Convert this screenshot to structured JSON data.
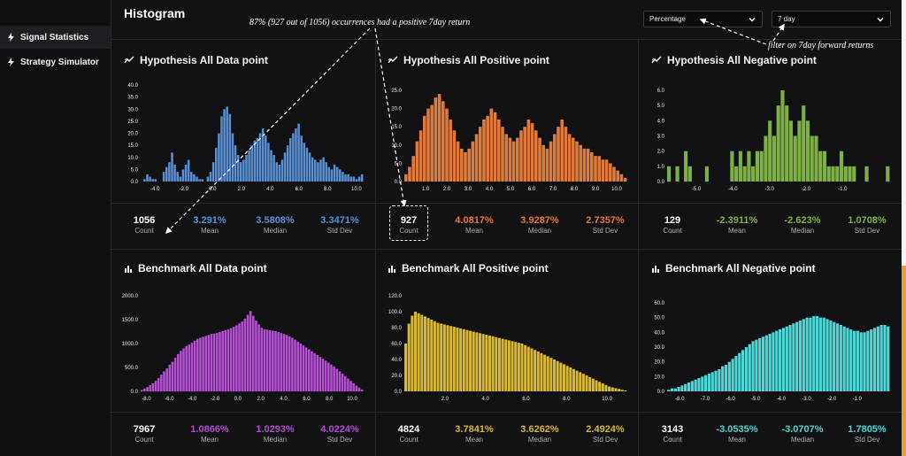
{
  "sidebar": {
    "items": [
      {
        "label": "Signal Statistics",
        "icon": "bolt-icon",
        "active": true
      },
      {
        "label": "Strategy Simulator",
        "icon": "bolt-icon",
        "active": false
      }
    ]
  },
  "header": {
    "title": "Histogram",
    "dropdown_unit": "Percentage",
    "dropdown_period": "7 day"
  },
  "annotations": {
    "top": "87% (927 out of 1056) occurrences had a positive 7day return",
    "filter": "filter on 7day forward returns"
  },
  "colors": {
    "blue": "#5b8fd4",
    "orange": "#e07a3a",
    "green": "#7fb046",
    "purple": "#b64fd6",
    "yellow": "#d9b832",
    "cyan": "#4fd6d6"
  },
  "panels": [
    {
      "title": "Hypothesis All Data point",
      "icon": "chart-line-icon",
      "color": "#5b8fd4",
      "stats": {
        "count": "1056",
        "mean": "3.291%",
        "median": "3.5808%",
        "std": "3.3471%"
      }
    },
    {
      "title": "Hypothesis All Positive point",
      "icon": "chart-line-icon",
      "color": "#e07a3a",
      "stats": {
        "count": "927",
        "mean": "4.0817%",
        "median": "3.9287%",
        "std": "2.7357%"
      }
    },
    {
      "title": "Hypothesis All Negative point",
      "icon": "chart-line-icon",
      "color": "#7fb046",
      "stats": {
        "count": "129",
        "mean": "-2.3911%",
        "median": "-2.623%",
        "std": "1.0708%"
      }
    },
    {
      "title": "Benchmark All Data point",
      "icon": "bar-chart-icon",
      "color": "#b64fd6",
      "stats": {
        "count": "7967",
        "mean": "1.0866%",
        "median": "1.0293%",
        "std": "4.0224%"
      }
    },
    {
      "title": "Benchmark All Positive point",
      "icon": "bar-chart-icon",
      "color": "#d9b832",
      "stats": {
        "count": "4824",
        "mean": "3.7841%",
        "median": "3.6262%",
        "std": "2.4924%"
      }
    },
    {
      "title": "Benchmark All Negative point",
      "icon": "bar-chart-icon",
      "color": "#4fd6d6",
      "stats": {
        "count": "3143",
        "mean": "-3.0535%",
        "median": "-3.0707%",
        "std": "1.7805%"
      }
    }
  ],
  "stat_labels": {
    "count": "Count",
    "mean": "Mean",
    "median": "Median",
    "std": "Std Dev"
  },
  "chart_data": [
    {
      "type": "bar",
      "title": "Hypothesis All Data point",
      "xlim": [
        -5,
        10.5
      ],
      "ylim": [
        0,
        40
      ],
      "x_ticks": [
        "-4.0",
        "-2.0",
        "0.0",
        "2.0",
        "4.0",
        "6.0",
        "8.0",
        "10.0"
      ],
      "y_ticks": [
        "0.0",
        "5.0",
        "10.0",
        "15.0",
        "20.0",
        "25.0",
        "30.0",
        "35.0",
        "40.0"
      ],
      "values": [
        0,
        1,
        3,
        2,
        1,
        1,
        0,
        0,
        4,
        6,
        8,
        12,
        7,
        4,
        2,
        5,
        7,
        9,
        4,
        3,
        2,
        1,
        1,
        0,
        2,
        4,
        8,
        14,
        20,
        27,
        30,
        31,
        28,
        20,
        15,
        11,
        8,
        9,
        11,
        13,
        15,
        17,
        18,
        20,
        22,
        19,
        16,
        13,
        11,
        8,
        7,
        9,
        12,
        15,
        18,
        20,
        22,
        24,
        19,
        16,
        14,
        12,
        10,
        9,
        8,
        9,
        10,
        8,
        6,
        5,
        7,
        6,
        5,
        4,
        3,
        3,
        2,
        2,
        1,
        2,
        3
      ]
    },
    {
      "type": "bar",
      "title": "Hypothesis All Positive point",
      "xlim": [
        0,
        10.5
      ],
      "ylim": [
        0,
        25
      ],
      "x_ticks": [
        "1.0",
        "2.0",
        "3.0",
        "4.0",
        "5.0",
        "6.0",
        "7.0",
        "8.0",
        "9.0",
        "10.0"
      ],
      "y_ticks": [
        "0.0",
        "5.0",
        "10.0",
        "15.0",
        "20.0",
        "25.0"
      ],
      "values": [
        2,
        4,
        7,
        11,
        14,
        18,
        20,
        21,
        23,
        24,
        22,
        20,
        17,
        14,
        11,
        9,
        8,
        9,
        11,
        13,
        15,
        17,
        18,
        20,
        19,
        17,
        15,
        13,
        12,
        11,
        12,
        14,
        15,
        17,
        16,
        14,
        12,
        10,
        9,
        11,
        13,
        15,
        17,
        15,
        13,
        12,
        11,
        10,
        9,
        9,
        8,
        7,
        7,
        6,
        6,
        5,
        4,
        3,
        2,
        1
      ]
    },
    {
      "type": "bar",
      "title": "Hypothesis All Negative point",
      "xlim": [
        -5.8,
        0.3
      ],
      "ylim": [
        0,
        6
      ],
      "x_ticks": [
        "-5.0",
        "-4.0",
        "-3.0",
        "-2.0",
        "-1.0"
      ],
      "y_ticks": [
        "0.0",
        "1.0",
        "2.0",
        "3.0",
        "4.0",
        "5.0",
        "6.0"
      ],
      "values": [
        1,
        0,
        1,
        0,
        2,
        1,
        0,
        0,
        0,
        1,
        0,
        0,
        0,
        0,
        0,
        2,
        1,
        2,
        1,
        2,
        1,
        2,
        2,
        3,
        4,
        3,
        5,
        6,
        5,
        4,
        3,
        4,
        5,
        4,
        3,
        3,
        2,
        2,
        1,
        1,
        1,
        2,
        1,
        1,
        1,
        0,
        0,
        1,
        0,
        0,
        0,
        0,
        1
      ]
    },
    {
      "type": "bar",
      "title": "Benchmark All Data point",
      "xlim": [
        -8.5,
        11
      ],
      "ylim": [
        0,
        2000
      ],
      "x_ticks": [
        "-8.0",
        "-6.0",
        "-4.0",
        "-2.0",
        "0.0",
        "2.0",
        "4.0",
        "6.0",
        "8.0",
        "10.0"
      ],
      "y_ticks": [
        "0.0",
        "500.0",
        "1000.0",
        "1500.0",
        "2000.0"
      ],
      "values": [
        30,
        60,
        90,
        130,
        170,
        220,
        280,
        350,
        420,
        480,
        560,
        620,
        700,
        780,
        850,
        900,
        950,
        980,
        1020,
        1060,
        1100,
        1120,
        1140,
        1160,
        1180,
        1200,
        1210,
        1220,
        1240,
        1260,
        1280,
        1300,
        1320,
        1350,
        1380,
        1420,
        1460,
        1520,
        1600,
        1680,
        1580,
        1480,
        1400,
        1330,
        1300,
        1290,
        1280,
        1270,
        1260,
        1240,
        1220,
        1200,
        1180,
        1150,
        1120,
        1080,
        1040,
        1000,
        960,
        920,
        880,
        840,
        800,
        760,
        720,
        680,
        640,
        600,
        560,
        520,
        470,
        420,
        370,
        320,
        270,
        220,
        170,
        120,
        80,
        40
      ]
    },
    {
      "type": "bar",
      "title": "Benchmark All Positive point",
      "xlim": [
        0,
        11
      ],
      "ylim": [
        0,
        120
      ],
      "x_ticks": [
        "2.0",
        "4.0",
        "6.0",
        "8.0",
        "10.0"
      ],
      "y_ticks": [
        "0.0",
        "20.0",
        "40.0",
        "60.0",
        "80.0",
        "100.0",
        "120.0"
      ],
      "values": [
        60,
        85,
        95,
        100,
        98,
        96,
        94,
        92,
        90,
        88,
        86,
        85,
        84,
        83,
        82,
        81,
        80,
        79,
        78,
        77,
        76,
        75,
        74,
        73,
        72,
        71,
        70,
        69,
        68,
        67,
        66,
        65,
        64,
        63,
        62,
        61,
        60,
        58,
        56,
        54,
        52,
        50,
        48,
        46,
        44,
        42,
        40,
        38,
        36,
        34,
        32,
        30,
        28,
        26,
        24,
        22,
        20,
        18,
        16,
        14,
        12,
        10,
        8,
        6,
        5,
        4,
        3,
        2,
        1
      ]
    },
    {
      "type": "bar",
      "title": "Benchmark All Negative point",
      "xlim": [
        -8.5,
        0.3
      ],
      "ylim": [
        0,
        60
      ],
      "x_ticks": [
        "-8.0",
        "-7.0",
        "-6.0",
        "-5.0",
        "-4.0",
        "-3.0",
        "-2.0",
        "-1.0"
      ],
      "y_ticks": [
        "0.0",
        "10.0",
        "20.0",
        "30.0",
        "40.0",
        "50.0",
        "60.0"
      ],
      "values": [
        1,
        2,
        2,
        3,
        4,
        5,
        6,
        7,
        8,
        9,
        10,
        11,
        12,
        13,
        14,
        15,
        17,
        18,
        20,
        22,
        24,
        26,
        28,
        30,
        32,
        34,
        35,
        36,
        37,
        38,
        39,
        40,
        41,
        42,
        43,
        44,
        45,
        46,
        47,
        48,
        49,
        50,
        50,
        51,
        51,
        50,
        50,
        49,
        48,
        47,
        46,
        45,
        44,
        43,
        42,
        41,
        41,
        40,
        40,
        41,
        42,
        43,
        44,
        45,
        45,
        44
      ]
    }
  ]
}
